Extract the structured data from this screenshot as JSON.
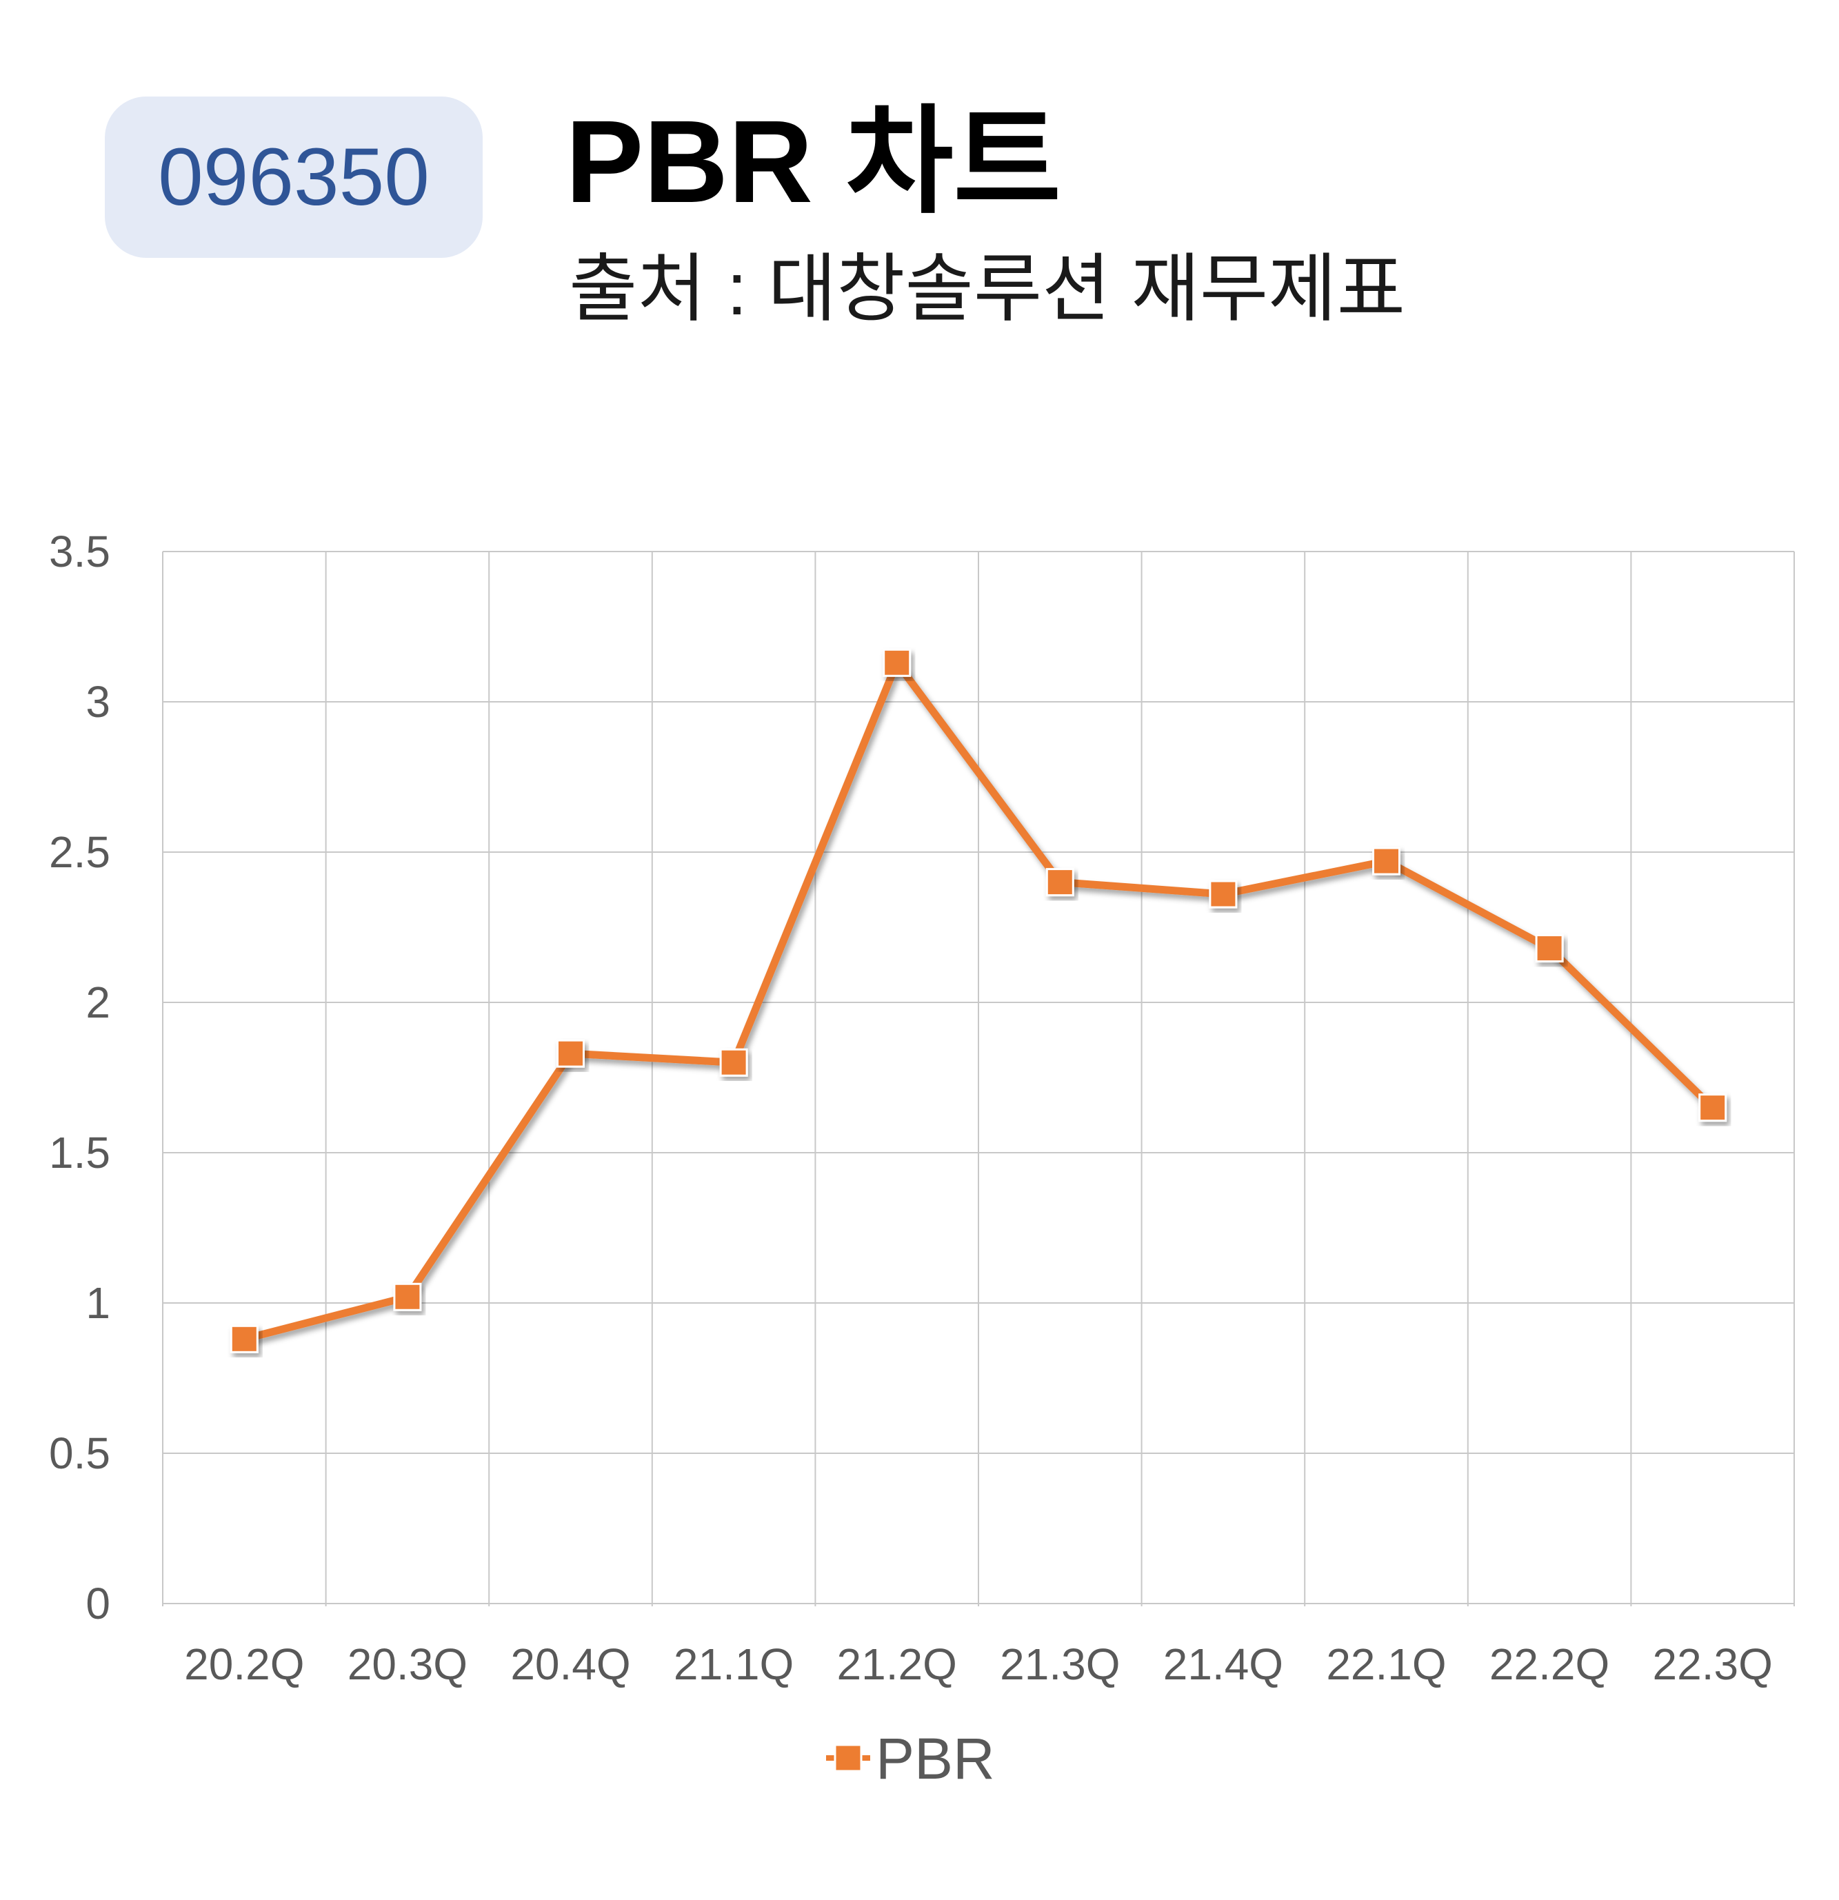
{
  "header": {
    "code": "096350",
    "title": "PBR 차트",
    "subtitle": "출처 : 대창솔루션 재무제표"
  },
  "chart_data": {
    "type": "line",
    "categories": [
      "20.2Q",
      "20.3Q",
      "20.4Q",
      "21.1Q",
      "21.2Q",
      "21.3Q",
      "21.4Q",
      "22.1Q",
      "22.2Q",
      "22.3Q"
    ],
    "series": [
      {
        "name": "PBR",
        "values": [
          0.88,
          1.02,
          1.83,
          1.8,
          3.13,
          2.4,
          2.36,
          2.47,
          2.18,
          1.65
        ],
        "color": "#ed7d31"
      }
    ],
    "ylim": [
      0,
      3.5
    ],
    "yticks": [
      "0",
      "0.5",
      "1",
      "1.5",
      "2",
      "2.5",
      "3",
      "3.5"
    ],
    "grid": true,
    "legend": "bottom"
  }
}
